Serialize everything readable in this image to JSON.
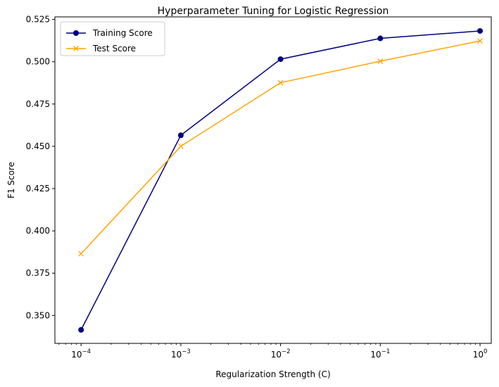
{
  "chart_data": {
    "type": "line",
    "title": "Hyperparameter Tuning for Logistic Regression",
    "xlabel": "Regularization Strength (C)",
    "ylabel": "F1 Score",
    "xscale": "log",
    "x": [
      0.0001,
      0.001,
      0.01,
      0.1,
      1
    ],
    "x_tick_labels": [
      {
        "base": "10",
        "exp": "−4"
      },
      {
        "base": "10",
        "exp": "−3"
      },
      {
        "base": "10",
        "exp": "−2"
      },
      {
        "base": "10",
        "exp": "−1"
      },
      {
        "base": "10",
        "exp": "0"
      }
    ],
    "y_ticks": [
      "0.350",
      "0.375",
      "0.400",
      "0.425",
      "0.450",
      "0.475",
      "0.500",
      "0.525"
    ],
    "ylim": [
      0.3335,
      0.5265
    ],
    "grid": false,
    "legend_position": "upper-left",
    "series": [
      {
        "name": "Training Score",
        "marker": "circle",
        "color": "#000080",
        "values": [
          0.3415,
          0.4565,
          0.5015,
          0.5138,
          0.5182
        ]
      },
      {
        "name": "Test Score",
        "marker": "x",
        "color": "#ffa500",
        "values": [
          0.3865,
          0.45,
          0.4876,
          0.5003,
          0.5123
        ]
      }
    ]
  }
}
